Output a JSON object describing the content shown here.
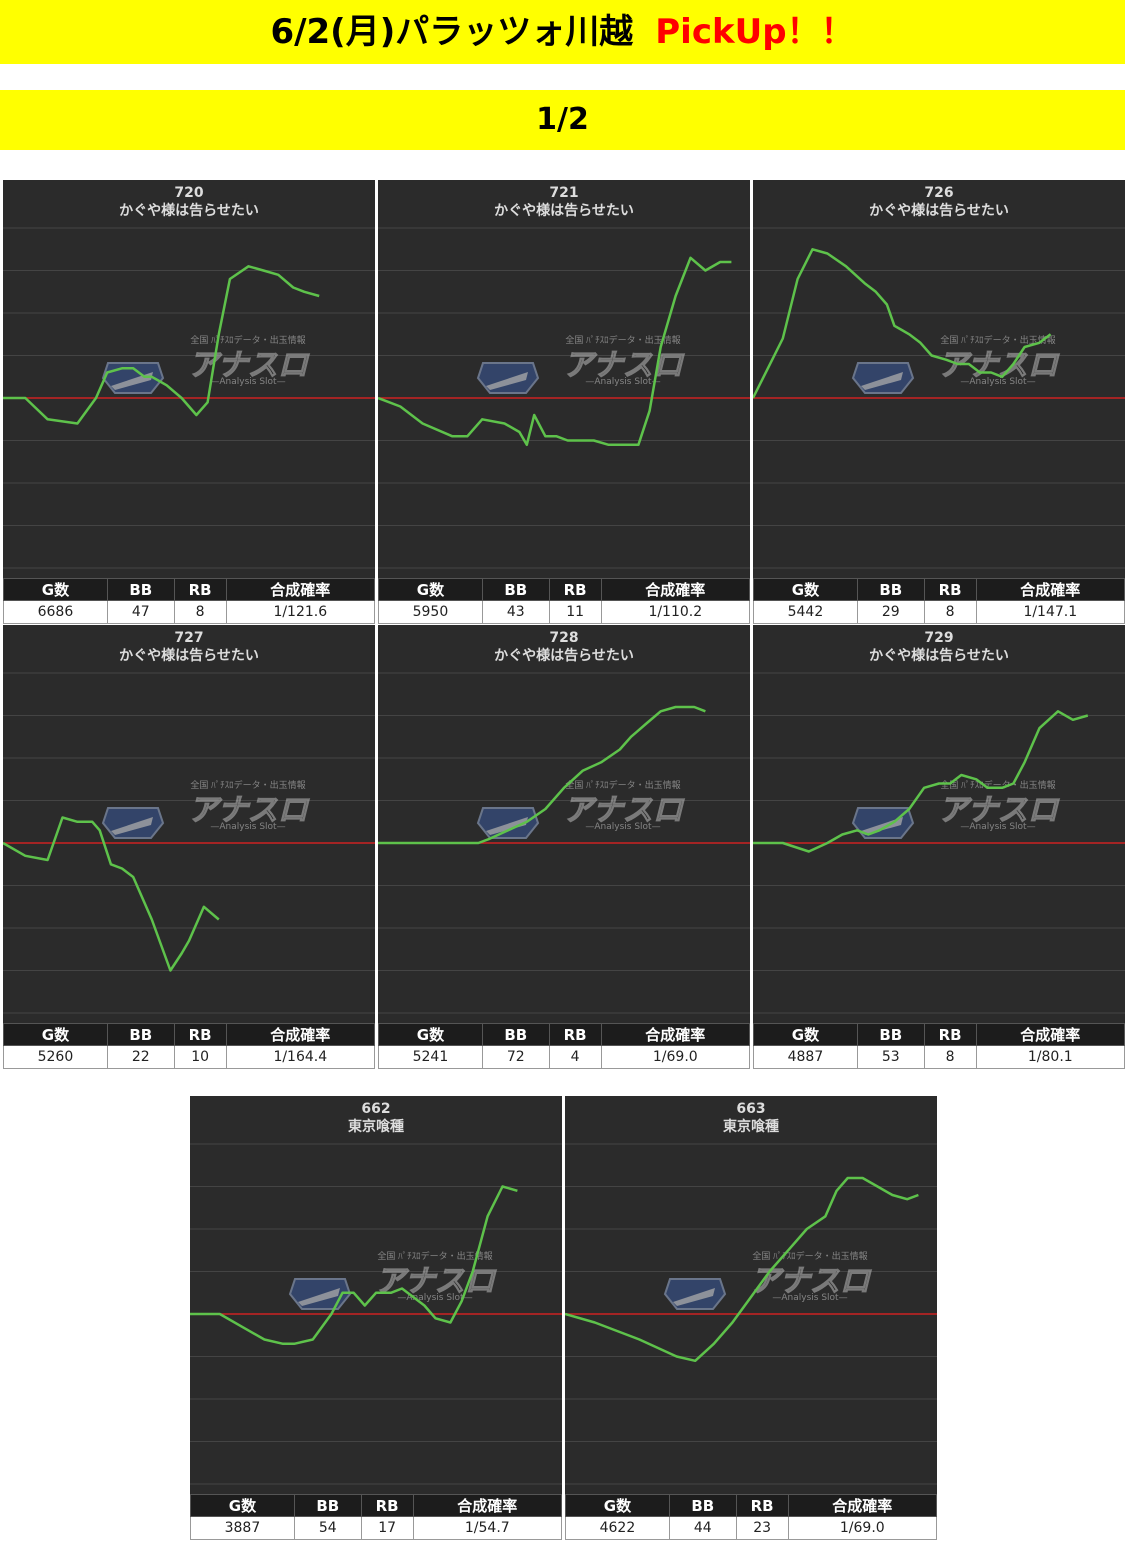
{
  "header": {
    "title": "6/2(月)パラッツォ川越",
    "pickup": "PickUp！！",
    "page": "1/2"
  },
  "stats_headers": [
    "G数",
    "BB",
    "RB",
    "合成確率"
  ],
  "watermark": {
    "logo": "アナスロ",
    "sub": "—Analysis Slot—",
    "top": "全国 ﾊﾟﾁｽﾛデータ・出玉情報",
    "icon": "shield-logo-icon"
  },
  "colors": {
    "banner": "#ffff00",
    "pickup": "#ff0000",
    "line": "#5ec24b",
    "zero": "#cc2222",
    "chart_bg": "#2b2b2b"
  },
  "chart_data": [
    {
      "type": "line",
      "machine": "720",
      "model": "かぐや様は告らせたい",
      "stats": {
        "games": "6686",
        "bb": "47",
        "rb": "8",
        "prob": "1/121.6"
      },
      "grid": true,
      "x": [
        0,
        6,
        12,
        20,
        25,
        28,
        32,
        35,
        38,
        40,
        42,
        44,
        48,
        52,
        55,
        58,
        61,
        66,
        70,
        74,
        78,
        81,
        85
      ],
      "y": [
        0,
        0,
        -0.5,
        -0.6,
        0,
        0.6,
        0.7,
        0.7,
        0.5,
        0.5,
        0.4,
        0.3,
        0,
        -0.4,
        -0.1,
        1.5,
        2.8,
        3.1,
        3.0,
        2.9,
        2.6,
        2.5,
        2.4
      ]
    },
    {
      "type": "line",
      "machine": "721",
      "model": "かぐや様は告らせたい",
      "stats": {
        "games": "5950",
        "bb": "43",
        "rb": "11",
        "prob": "1/110.2"
      },
      "grid": true,
      "x": [
        0,
        6,
        12,
        20,
        24,
        28,
        34,
        38,
        40,
        42,
        45,
        48,
        51,
        55,
        58,
        62,
        66,
        70,
        73,
        76,
        80,
        84,
        88,
        92,
        95
      ],
      "y": [
        0,
        -0.2,
        -0.6,
        -0.9,
        -0.9,
        -0.5,
        -0.6,
        -0.8,
        -1.1,
        -0.4,
        -0.9,
        -0.9,
        -1.0,
        -1.0,
        -1.0,
        -1.1,
        -1.1,
        -1.1,
        -0.3,
        1.2,
        2.4,
        3.3,
        3.0,
        3.2,
        3.2
      ]
    },
    {
      "type": "line",
      "machine": "726",
      "model": "かぐや様は告らせたい",
      "stats": {
        "games": "5442",
        "bb": "29",
        "rb": "8",
        "prob": "1/147.1"
      },
      "grid": true,
      "x": [
        0,
        4,
        8,
        12,
        16,
        20,
        25,
        30,
        33,
        36,
        38,
        40,
        42,
        45,
        48,
        52,
        55,
        58,
        61,
        64,
        67,
        70,
        73,
        77,
        80
      ],
      "y": [
        0,
        0.7,
        1.4,
        2.8,
        3.5,
        3.4,
        3.1,
        2.7,
        2.5,
        2.2,
        1.7,
        1.6,
        1.5,
        1.3,
        1.0,
        0.9,
        0.8,
        0.8,
        0.6,
        0.6,
        0.5,
        0.8,
        1.2,
        1.3,
        1.5
      ]
    },
    {
      "type": "line",
      "machine": "727",
      "model": "かぐや様は告らせたい",
      "stats": {
        "games": "5260",
        "bb": "22",
        "rb": "10",
        "prob": "1/164.4"
      },
      "grid": true,
      "x": [
        0,
        6,
        12,
        16,
        20,
        24,
        26,
        29,
        32,
        35,
        40,
        45,
        48,
        50,
        54,
        58
      ],
      "y": [
        0,
        -0.3,
        -0.4,
        0.6,
        0.5,
        0.5,
        0.3,
        -0.5,
        -0.6,
        -0.8,
        -1.8,
        -3.0,
        -2.6,
        -2.3,
        -1.5,
        -1.8
      ]
    },
    {
      "type": "line",
      "machine": "728",
      "model": "かぐや様は告らせたい",
      "stats": {
        "games": "5241",
        "bb": "72",
        "rb": "4",
        "prob": "1/69.0"
      },
      "grid": true,
      "x": [
        0,
        10,
        20,
        27,
        30,
        35,
        40,
        45,
        50,
        55,
        60,
        65,
        68,
        72,
        76,
        80,
        85,
        88
      ],
      "y": [
        0,
        0,
        0,
        0,
        0.1,
        0.3,
        0.5,
        0.8,
        1.3,
        1.7,
        1.9,
        2.2,
        2.5,
        2.8,
        3.1,
        3.2,
        3.2,
        3.1
      ]
    },
    {
      "type": "line",
      "machine": "729",
      "model": "かぐや様は告らせたい",
      "stats": {
        "games": "4887",
        "bb": "53",
        "rb": "8",
        "prob": "1/80.1"
      },
      "grid": true,
      "x": [
        0,
        8,
        15,
        20,
        24,
        28,
        31,
        34,
        38,
        42,
        46,
        50,
        53,
        56,
        60,
        63,
        67,
        70,
        73,
        77,
        82,
        86,
        90
      ],
      "y": [
        0,
        0,
        -0.2,
        0,
        0.2,
        0.3,
        0.2,
        0.3,
        0.5,
        0.8,
        1.3,
        1.4,
        1.4,
        1.6,
        1.5,
        1.3,
        1.3,
        1.4,
        1.9,
        2.7,
        3.1,
        2.9,
        3.0
      ]
    },
    {
      "type": "line",
      "machine": "662",
      "model": "東京喰種",
      "stats": {
        "games": "3887",
        "bb": "54",
        "rb": "17",
        "prob": "1/54.7"
      },
      "grid": true,
      "x": [
        0,
        8,
        14,
        20,
        25,
        28,
        33,
        38,
        41,
        44,
        47,
        50,
        54,
        57,
        60,
        63,
        66,
        70,
        73,
        76,
        80,
        84,
        88
      ],
      "y": [
        0,
        0,
        -0.3,
        -0.6,
        -0.7,
        -0.7,
        -0.6,
        0,
        0.5,
        0.5,
        0.2,
        0.5,
        0.5,
        0.6,
        0.4,
        0.2,
        -0.1,
        -0.2,
        0.3,
        1.0,
        2.3,
        3.0,
        2.9
      ]
    },
    {
      "type": "line",
      "machine": "663",
      "model": "東京喰種",
      "stats": {
        "games": "4622",
        "bb": "44",
        "rb": "23",
        "prob": "1/69.0"
      },
      "grid": true,
      "x": [
        0,
        8,
        14,
        20,
        25,
        30,
        35,
        40,
        45,
        50,
        55,
        60,
        65,
        70,
        73,
        76,
        80,
        84,
        88,
        92,
        95
      ],
      "y": [
        0,
        -0.2,
        -0.4,
        -0.6,
        -0.8,
        -1.0,
        -1.1,
        -0.7,
        -0.2,
        0.4,
        1.0,
        1.5,
        2.0,
        2.3,
        2.9,
        3.2,
        3.2,
        3.0,
        2.8,
        2.7,
        2.8
      ]
    }
  ]
}
